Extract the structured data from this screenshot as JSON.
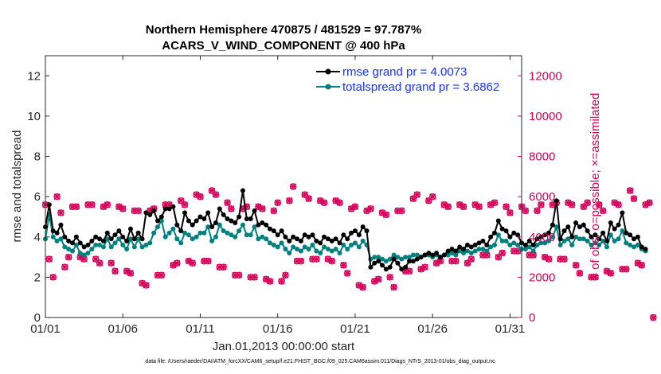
{
  "chart_data": {
    "type": "line",
    "title_line1": "Northern Hemisphere 470875 / 481529 = 97.787%",
    "title_line2": "ACARS_V_WIND_COMPONENT @ 400 hPa",
    "xlabel": "Jan.01,2013 00:00:00 start",
    "ylabel": "rmse and totalspread",
    "ylabel_right": "# of obs: o=possible; ×=assimilated",
    "xlim": [
      0,
      30.75
    ],
    "ylim": [
      0,
      13
    ],
    "ylim_right": [
      0,
      13000
    ],
    "x_ticks": [
      {
        "value": 0,
        "label": "01/01"
      },
      {
        "value": 5,
        "label": "01/06"
      },
      {
        "value": 10,
        "label": "01/11"
      },
      {
        "value": 15,
        "label": "01/16"
      },
      {
        "value": 20,
        "label": "01/21"
      },
      {
        "value": 25,
        "label": "01/26"
      },
      {
        "value": 30,
        "label": "01/31"
      }
    ],
    "y_ticks": [
      {
        "value": 0,
        "label": "0"
      },
      {
        "value": 2,
        "label": "2"
      },
      {
        "value": 4,
        "label": "4"
      },
      {
        "value": 6,
        "label": "6"
      },
      {
        "value": 8,
        "label": "8"
      },
      {
        "value": 10,
        "label": "10"
      },
      {
        "value": 12,
        "label": "12"
      }
    ],
    "y_ticks_right": [
      {
        "value": 0,
        "label": "0"
      },
      {
        "value": 2000,
        "label": "2000"
      },
      {
        "value": 4000,
        "label": "4000"
      },
      {
        "value": 6000,
        "label": "6000"
      },
      {
        "value": 8000,
        "label": "8000"
      },
      {
        "value": 10000,
        "label": "10000"
      },
      {
        "value": 12000,
        "label": "12000"
      }
    ],
    "x_step_days": 0.25,
    "series": [
      {
        "name": "rmse grand pr = 4.0073",
        "color": "#000000",
        "values": [
          4.5,
          5.6,
          4.3,
          4.2,
          4.6,
          4.0,
          3.8,
          3.7,
          4.0,
          3.7,
          3.5,
          3.6,
          3.8,
          4.0,
          3.9,
          3.8,
          4.2,
          3.9,
          4.1,
          4.3,
          4.0,
          3.8,
          4.4,
          3.9,
          4.2,
          3.9,
          5.2,
          5.1,
          5.3,
          4.8,
          5.0,
          5.4,
          5.4,
          5.5,
          4.6,
          4.3,
          5.2,
          4.8,
          4.6,
          4.8,
          5.0,
          4.9,
          5.2,
          4.5,
          4.7,
          5.4,
          5.1,
          4.9,
          4.8,
          4.7,
          5.0,
          6.3,
          4.9,
          4.9,
          5.3,
          4.6,
          4.7,
          4.6,
          4.4,
          4.3,
          4.1,
          4.3,
          4.0,
          3.8,
          4.0,
          3.9,
          3.8,
          4.1,
          4.0,
          4.1,
          3.8,
          3.7,
          4.0,
          3.9,
          3.8,
          3.9,
          3.7,
          4.1,
          3.9,
          4.2,
          4.3,
          4.1,
          4.5,
          4.3,
          2.5,
          2.7,
          2.8,
          2.6,
          2.4,
          2.5,
          2.9,
          2.7,
          2.4,
          2.5,
          2.8,
          2.8,
          2.9,
          3.0,
          3.1,
          3.2,
          3.1,
          3.2,
          3.0,
          3.1,
          3.3,
          3.4,
          3.3,
          3.5,
          3.4,
          3.6,
          3.5,
          3.6,
          3.7,
          3.8,
          3.6,
          4.0,
          4.2,
          4.8,
          4.4,
          4.3,
          4.0,
          4.2,
          4.1,
          3.7,
          3.6,
          3.8,
          3.6,
          3.9,
          4.0,
          4.1,
          4.2,
          4.6,
          5.8,
          3.9,
          4.3,
          4.5,
          4.0,
          4.7,
          4.5,
          4.6,
          4.3,
          4.0,
          4.1,
          3.9,
          4.2,
          3.8,
          4.7,
          4.4,
          4.6,
          5.2,
          4.2,
          4.1,
          3.9,
          4.0,
          3.5,
          3.4
        ]
      },
      {
        "name": "totalspread grand pr = 3.6862",
        "color": "#00807e",
        "values": [
          3.9,
          5.1,
          4.0,
          3.8,
          3.9,
          3.5,
          3.4,
          3.3,
          3.6,
          3.2,
          3.1,
          3.2,
          3.4,
          3.6,
          3.6,
          3.5,
          3.9,
          3.5,
          3.7,
          3.9,
          3.6,
          3.4,
          3.9,
          3.5,
          3.9,
          3.5,
          3.6,
          3.7,
          4.2,
          4.5,
          4.8,
          4.0,
          4.2,
          4.4,
          3.9,
          3.7,
          4.2,
          4.1,
          3.9,
          4.0,
          4.2,
          4.2,
          4.5,
          3.8,
          4.0,
          4.6,
          4.3,
          4.2,
          4.1,
          4.0,
          4.3,
          4.6,
          4.1,
          4.1,
          4.5,
          3.9,
          4.0,
          3.9,
          3.7,
          3.6,
          3.5,
          3.7,
          3.4,
          3.2,
          3.5,
          3.4,
          3.3,
          3.5,
          3.4,
          3.6,
          3.3,
          3.2,
          3.5,
          3.4,
          3.3,
          3.4,
          3.2,
          3.6,
          3.4,
          3.6,
          3.7,
          3.5,
          3.8,
          3.6,
          2.9,
          3.0,
          3.0,
          2.9,
          2.8,
          2.9,
          3.1,
          3.0,
          2.9,
          3.0,
          3.0,
          3.1,
          3.1,
          3.0,
          3.1,
          3.1,
          3.0,
          3.1,
          3.0,
          3.1,
          3.1,
          3.2,
          3.1,
          3.3,
          3.2,
          3.3,
          3.2,
          3.3,
          3.4,
          3.4,
          3.3,
          3.5,
          3.6,
          4.1,
          3.8,
          3.8,
          3.6,
          3.7,
          3.6,
          3.4,
          3.4,
          3.5,
          3.3,
          3.6,
          3.7,
          3.7,
          3.8,
          4.0,
          4.5,
          3.6,
          3.8,
          3.9,
          3.6,
          4.0,
          3.9,
          3.9,
          3.8,
          3.6,
          3.7,
          3.6,
          3.8,
          3.5,
          4.1,
          3.8,
          3.9,
          4.3,
          3.7,
          3.6,
          3.5,
          3.6,
          3.4,
          3.3
        ]
      }
    ],
    "obs_possible": {
      "name": "o=possible",
      "color": "#d6005a",
      "values": [
        5600,
        2900,
        2000,
        6000,
        5200,
        2500,
        3000,
        5500,
        5500,
        3000,
        2900,
        5600,
        5600,
        2900,
        2700,
        5500,
        5600,
        2700,
        2300,
        5500,
        5400,
        2300,
        2200,
        5300,
        5300,
        1700,
        1600,
        5300,
        5400,
        2100,
        2100,
        5600,
        5600,
        2600,
        2700,
        5800,
        5600,
        2800,
        2700,
        6100,
        6000,
        2800,
        2800,
        6300,
        6100,
        2500,
        2500,
        5700,
        5400,
        2100,
        2100,
        5400,
        5500,
        2000,
        2000,
        5500,
        5400,
        1900,
        1800,
        5300,
        5700,
        1800,
        2100,
        5800,
        6500,
        2800,
        2800,
        6100,
        5900,
        2900,
        2900,
        5800,
        5700,
        2900,
        2800,
        5800,
        5700,
        2600,
        2200,
        5400,
        5500,
        1600,
        1500,
        5300,
        5400,
        1800,
        1900,
        5200,
        5100,
        2000,
        1500,
        5300,
        5300,
        2300,
        2300,
        5900,
        6100,
        2400,
        2500,
        5800,
        6000,
        2700,
        2800,
        5600,
        5500,
        2800,
        2800,
        5600,
        5500,
        2700,
        2900,
        5600,
        5500,
        3100,
        3100,
        5600,
        5700,
        3000,
        3200,
        5500,
        5200,
        3300,
        3300,
        5500,
        5300,
        3100,
        3100,
        5300,
        5600,
        3000,
        2900,
        5600,
        5700,
        2900,
        2900,
        5700,
        5600,
        2600,
        2200,
        5500,
        5700,
        2000,
        2000,
        5600,
        5300,
        2300,
        2200,
        5700,
        5600,
        2400,
        2400,
        6300,
        5900,
        2700,
        2600,
        5600,
        5700,
        0
      ]
    },
    "obs_assimilated": {
      "name": "×=assimilated",
      "color": "#d6005a"
    },
    "legend": {
      "position": "top-right"
    },
    "footnote": "data file: /Users/raeder/DAI/ATM_forcXX/CAM6_setup/f.e21.FHIST_BGC.f09_025.CAM6assim.011/Diags_NTrS_2013-01/obs_diag_output.nc"
  }
}
